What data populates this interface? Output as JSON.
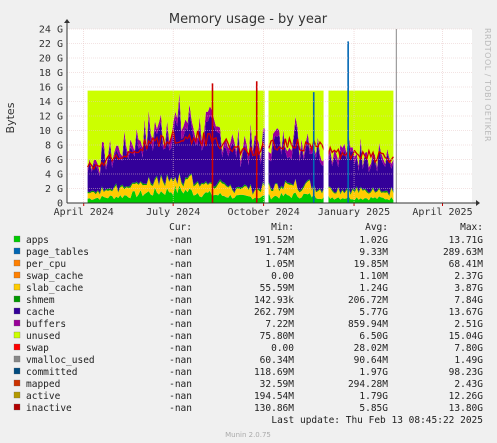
{
  "chart_data": {
    "type": "area",
    "title": "Memory usage - by year",
    "ylabel": "Bytes",
    "side_text": "RRDTOOL / TOBI OETIKER",
    "ylim": [
      0,
      24
    ],
    "yunit": "G",
    "y_ticks": [
      "0",
      "2 G",
      "4 G",
      "6 G",
      "8 G",
      "10 G",
      "12 G",
      "14 G",
      "16 G",
      "18 G",
      "20 G",
      "22 G",
      "24 G"
    ],
    "y_tick_values": [
      0,
      2,
      4,
      6,
      8,
      10,
      12,
      14,
      16,
      18,
      20,
      22,
      24
    ],
    "x_ticks": [
      "April 2024",
      "July 2024",
      "October 2024",
      "January 2025",
      "April 2025"
    ],
    "x_range": [
      "2024-03-15",
      "2025-05-01"
    ],
    "x_tick_dates": [
      "2024-04-01",
      "2024-07-01",
      "2024-10-01",
      "2025-01-01",
      "2025-04-01"
    ],
    "current_time_marker": "2025-02-13",
    "data_range": [
      "2024-04-05",
      "2025-02-10"
    ],
    "gaps": [
      [
        "2024-10-02",
        "2024-10-06"
      ],
      [
        "2024-12-01",
        "2024-12-06"
      ]
    ],
    "series_approx_stacked": [
      {
        "name": "apps",
        "color": "#00cc00",
        "values": [
          0.6,
          0.9,
          1.4,
          1.8,
          1.2,
          0.8,
          0.9,
          1.1,
          0.8,
          0.7,
          0.6
        ]
      },
      {
        "name": "page_tables",
        "color": "#0066b3",
        "values": [
          0.01,
          0.01,
          0.01,
          0.01,
          0.01,
          0.01,
          0.01,
          0.01,
          0.01,
          0.01,
          0.01
        ]
      },
      {
        "name": "per_cpu",
        "color": "#ff8000",
        "values": [
          0.02,
          0.02,
          0.02,
          0.02,
          0.02,
          0.02,
          0.02,
          0.02,
          0.02,
          0.02,
          0.02
        ]
      },
      {
        "name": "slab_cache",
        "color": "#ffcc00",
        "values": [
          0.8,
          1.1,
          1.5,
          1.6,
          1.3,
          1.0,
          1.2,
          1.4,
          1.2,
          1.0,
          0.9
        ]
      },
      {
        "name": "shmem",
        "color": "#009900",
        "values": [
          0.2,
          0.2,
          0.2,
          0.2,
          0.2,
          0.2,
          0.2,
          0.2,
          0.2,
          0.2,
          0.2
        ]
      },
      {
        "name": "cache",
        "color": "#330099",
        "values": [
          3.5,
          4.5,
          6.0,
          7.0,
          6.5,
          5.0,
          5.5,
          6.0,
          5.0,
          4.5,
          4.0
        ]
      },
      {
        "name": "buffers",
        "color": "#990099",
        "values": [
          0.5,
          0.8,
          1.0,
          1.2,
          1.0,
          0.9,
          0.9,
          1.0,
          0.8,
          0.7,
          0.6
        ]
      },
      {
        "name": "unused",
        "color": "#ccff00",
        "values": [
          10.0,
          8.0,
          5.5,
          4.0,
          5.3,
          7.5,
          6.8,
          6.0,
          7.6,
          8.5,
          9.3
        ]
      }
    ],
    "inactive_line": {
      "name": "inactive",
      "color": "#cc0000",
      "values": [
        4.5,
        6.0,
        7.5,
        8.5,
        8.0,
        6.5,
        7.0,
        7.5,
        6.5,
        6.0,
        5.5
      ]
    },
    "spikes": [
      {
        "date": "2024-12-26",
        "value": 22.3,
        "color": "#0066b3"
      },
      {
        "date": "2024-11-21",
        "value": 15.3,
        "color": "#0066b3"
      },
      {
        "date": "2024-09-24",
        "value": 16.8,
        "color": "#cc0000"
      },
      {
        "date": "2024-08-10",
        "value": 16.5,
        "color": "#cc0000"
      }
    ]
  },
  "legend_header": {
    "cur": "Cur:",
    "min": "Min:",
    "avg": "Avg:",
    "max": "Max:"
  },
  "legend": [
    {
      "name": "apps",
      "color": "#00cc00",
      "cur": "-nan",
      "min": "191.52M",
      "avg": "1.02G",
      "max": "13.71G"
    },
    {
      "name": "page_tables",
      "color": "#0066b3",
      "cur": "-nan",
      "min": "1.74M",
      "avg": "9.33M",
      "max": "289.63M"
    },
    {
      "name": "per_cpu",
      "color": "#ff8000",
      "cur": "-nan",
      "min": "1.05M",
      "avg": "19.85M",
      "max": "68.41M"
    },
    {
      "name": "swap_cache",
      "color": "#ff8000",
      "cur": "-nan",
      "min": "0.00",
      "avg": "1.10M",
      "max": "2.37G"
    },
    {
      "name": "slab_cache",
      "color": "#ffcc00",
      "cur": "-nan",
      "min": "55.59M",
      "avg": "1.24G",
      "max": "3.87G"
    },
    {
      "name": "shmem",
      "color": "#009900",
      "cur": "-nan",
      "min": "142.93k",
      "avg": "206.72M",
      "max": "7.84G"
    },
    {
      "name": "cache",
      "color": "#330099",
      "cur": "-nan",
      "min": "262.79M",
      "avg": "5.77G",
      "max": "13.67G"
    },
    {
      "name": "buffers",
      "color": "#990099",
      "cur": "-nan",
      "min": "7.22M",
      "avg": "859.94M",
      "max": "2.51G"
    },
    {
      "name": "unused",
      "color": "#ccff00",
      "cur": "-nan",
      "min": "75.80M",
      "avg": "6.50G",
      "max": "15.04G"
    },
    {
      "name": "swap",
      "color": "#ff0000",
      "cur": "-nan",
      "min": "0.00",
      "avg": "28.02M",
      "max": "7.80G"
    },
    {
      "name": "vmalloc_used",
      "color": "#888888",
      "cur": "-nan",
      "min": "60.34M",
      "avg": "90.64M",
      "max": "1.49G"
    },
    {
      "name": "committed",
      "color": "#004b7f",
      "cur": "-nan",
      "min": "118.69M",
      "avg": "1.97G",
      "max": "98.23G"
    },
    {
      "name": "mapped",
      "color": "#cc3300",
      "cur": "-nan",
      "min": "32.59M",
      "avg": "294.28M",
      "max": "2.43G"
    },
    {
      "name": "active",
      "color": "#b39900",
      "cur": "-nan",
      "min": "194.54M",
      "avg": "1.79G",
      "max": "12.26G"
    },
    {
      "name": "inactive",
      "color": "#b30000",
      "cur": "-nan",
      "min": "130.86M",
      "avg": "5.85G",
      "max": "13.80G"
    }
  ],
  "last_update": "Last update: Thu Feb 13 08:45:22 2025",
  "footer": "Munin 2.0.75"
}
